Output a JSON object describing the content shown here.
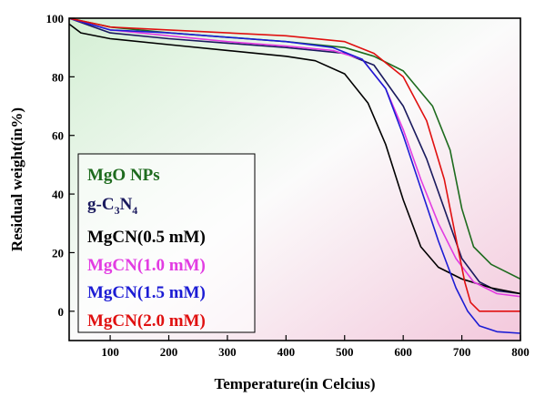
{
  "chart_data": {
    "type": "line",
    "xlabel": "Temperature(in Celcius)",
    "ylabel": "Residual weight(in%)",
    "xlim": [
      30,
      800
    ],
    "ylim": [
      -10,
      100
    ],
    "xticks": [
      100,
      200,
      300,
      400,
      500,
      600,
      700,
      800
    ],
    "yticks": [
      0,
      20,
      40,
      60,
      80,
      100
    ],
    "grid": false,
    "legend_position": "bottom-left",
    "legend": [
      {
        "label": "MgO NPs",
        "color": "#1e6b1e"
      },
      {
        "label_main": "g-C",
        "label_sub1": "3",
        "label_mid": "N",
        "label_sub2": "4",
        "color": "#1a1a5e"
      },
      {
        "label": "MgCN(0.5 mM)",
        "color": "#000000"
      },
      {
        "label": "MgCN(1.0 mM)",
        "color": "#e23ce2"
      },
      {
        "label": "MgCN(1.5 mM)",
        "color": "#1c1cd4"
      },
      {
        "label": "MgCN(2.0 mM)",
        "color": "#e01010"
      }
    ],
    "series": [
      {
        "color": "#1e6b1e",
        "x": [
          30,
          100,
          200,
          300,
          400,
          500,
          550,
          600,
          650,
          680,
          700,
          720,
          750,
          800
        ],
        "y": [
          100,
          97,
          95,
          93.5,
          92,
          90,
          87,
          82,
          70,
          55,
          35,
          22,
          16,
          11
        ]
      },
      {
        "color": "#1a1a5e",
        "x": [
          30,
          100,
          200,
          300,
          400,
          500,
          550,
          600,
          640,
          670,
          700,
          730,
          760,
          800
        ],
        "y": [
          100,
          95,
          93,
          91.5,
          90,
          88,
          84,
          70,
          52,
          35,
          18,
          10,
          7,
          6
        ]
      },
      {
        "color": "#000000",
        "x": [
          30,
          50,
          100,
          200,
          300,
          400,
          450,
          500,
          540,
          570,
          600,
          630,
          660,
          700,
          750,
          800
        ],
        "y": [
          98,
          95,
          93,
          91,
          89,
          87,
          85.5,
          81,
          71,
          57,
          38,
          22,
          15,
          11,
          8,
          6
        ]
      },
      {
        "color": "#e23ce2",
        "x": [
          30,
          100,
          200,
          300,
          400,
          480,
          530,
          570,
          600,
          630,
          660,
          690,
          720,
          760,
          800
        ],
        "y": [
          100,
          96,
          94,
          92,
          90.5,
          89,
          86,
          76,
          62,
          45,
          30,
          18,
          10,
          6,
          5
        ]
      },
      {
        "color": "#1c1cd4",
        "x": [
          30,
          100,
          200,
          300,
          400,
          480,
          530,
          570,
          600,
          630,
          660,
          690,
          710,
          730,
          760,
          800
        ],
        "y": [
          100,
          96,
          95,
          93.5,
          92,
          90,
          86,
          76,
          60,
          42,
          24,
          8,
          0,
          -5,
          -7,
          -7.5
        ]
      },
      {
        "color": "#e01010",
        "x": [
          30,
          100,
          200,
          300,
          400,
          500,
          550,
          600,
          640,
          670,
          690,
          705,
          715,
          730,
          760,
          800
        ],
        "y": [
          100,
          97,
          96,
          95,
          94,
          92,
          88,
          80,
          65,
          45,
          25,
          10,
          3,
          0,
          0,
          0
        ]
      }
    ]
  }
}
